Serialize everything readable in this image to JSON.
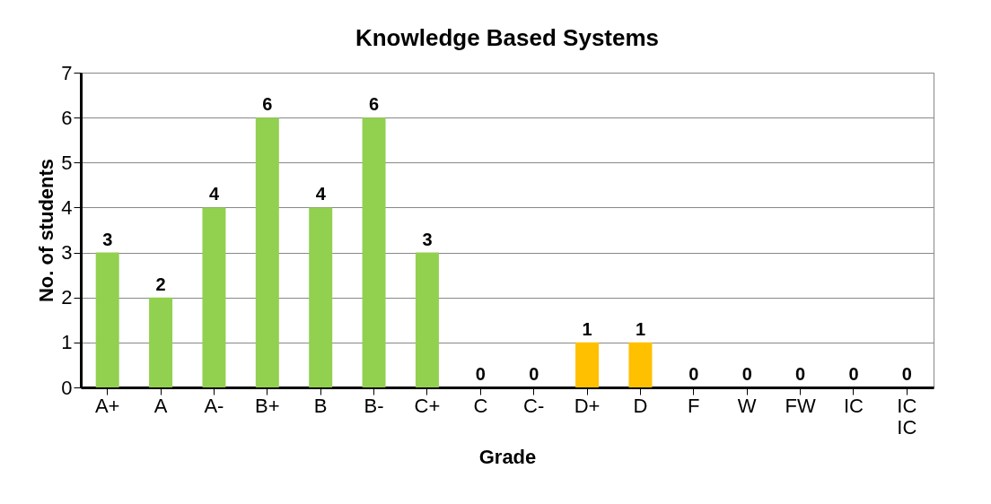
{
  "chart_data": {
    "type": "bar",
    "title": "Knowledge Based Systems",
    "xlabel": "Grade",
    "ylabel": "No. of students",
    "categories": [
      "A+",
      "A",
      "A-",
      "B+",
      "B",
      "B-",
      "C+",
      "C",
      "C-",
      "D+",
      "D",
      "F",
      "W",
      "FW",
      "IC",
      "IC IC"
    ],
    "values": [
      3,
      2,
      4,
      6,
      4,
      6,
      3,
      0,
      0,
      1,
      1,
      0,
      0,
      0,
      0,
      0
    ],
    "colors": [
      "#92d050",
      "#92d050",
      "#92d050",
      "#92d050",
      "#92d050",
      "#92d050",
      "#92d050",
      "#92d050",
      "#92d050",
      "#ffc000",
      "#ffc000",
      "#92d050",
      "#92d050",
      "#92d050",
      "#92d050",
      "#92d050"
    ],
    "ylim": [
      0,
      7
    ],
    "yticks": [
      0,
      1,
      2,
      3,
      4,
      5,
      6,
      7
    ],
    "grid": "y",
    "data_labels": true
  }
}
